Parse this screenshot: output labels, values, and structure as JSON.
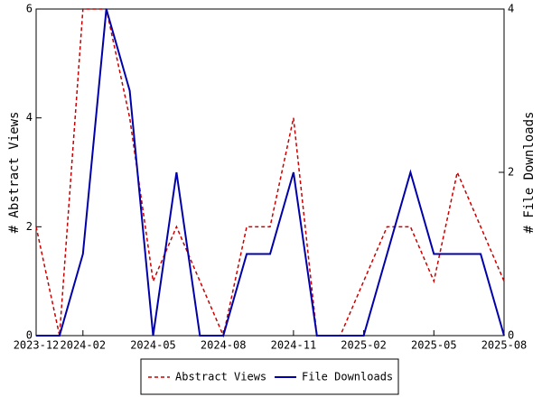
{
  "chart_data": {
    "type": "line",
    "categories": [
      "2023-12",
      null,
      "2024-02",
      null,
      null,
      "2024-05",
      null,
      null,
      "2024-08",
      null,
      null,
      "2024-11",
      null,
      null,
      "2025-02",
      null,
      null,
      "2025-05",
      null,
      null,
      "2025-08"
    ],
    "series": [
      {
        "name": "Abstract Views",
        "color": "#cc0000",
        "dash": true,
        "axis": "y",
        "values": [
          2,
          0,
          6,
          6,
          4,
          1,
          2,
          1,
          0,
          2,
          2,
          4,
          0,
          0,
          1,
          2,
          2,
          1,
          3,
          2,
          1
        ]
      },
      {
        "name": "File Downloads",
        "color": "#0000aa",
        "dash": false,
        "axis": "y2",
        "values": [
          0,
          0,
          1,
          4,
          3,
          0,
          2,
          0,
          0,
          1,
          1,
          2,
          0,
          0,
          0,
          1,
          2,
          1,
          1,
          1,
          0
        ]
      }
    ],
    "ylabel": "# Abstract Views",
    "y2label": "# File Downloads",
    "ylim": [
      0,
      6
    ],
    "yticks": [
      0,
      2,
      4,
      6
    ],
    "y2lim": [
      0,
      4
    ],
    "y2ticks": [
      0,
      2,
      4
    ],
    "legend": "bottom"
  }
}
